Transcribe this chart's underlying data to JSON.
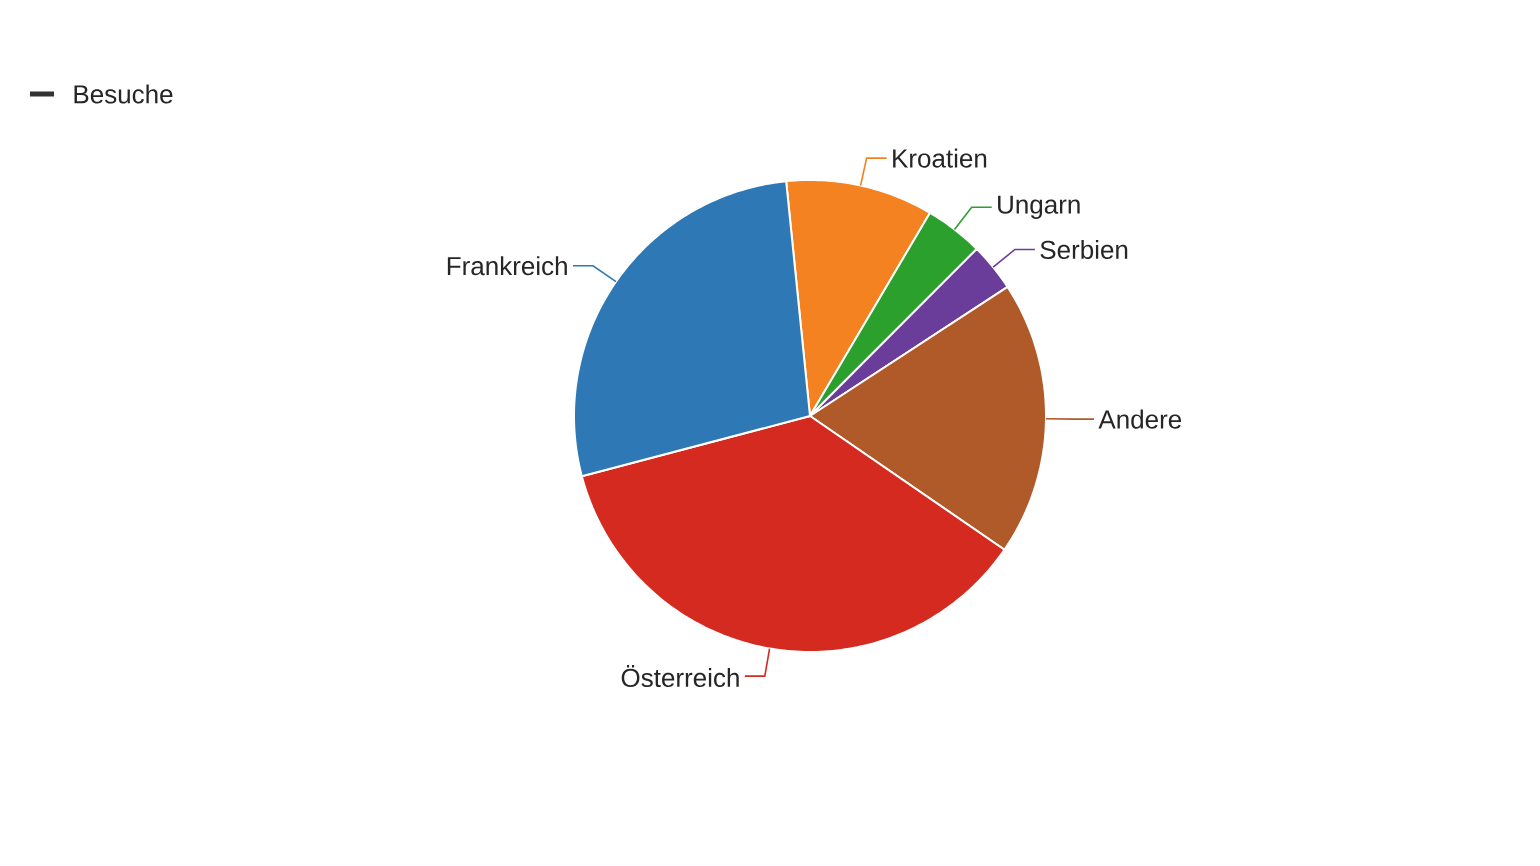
{
  "chart_data": {
    "type": "pie",
    "categories": [
      "Kroatien",
      "Ungarn",
      "Serbien",
      "Andere",
      "Österreich",
      "Frankreich"
    ],
    "series": [
      {
        "name": "Besuche",
        "values": [
          10.1,
          4.0,
          3.3,
          18.8,
          36.3,
          27.5
        ]
      }
    ],
    "colors": [
      "#f58220",
      "#2ca02c",
      "#6a3d9a",
      "#b05a2a",
      "#d52a20",
      "#2e78b5"
    ],
    "legend": "top left"
  }
}
